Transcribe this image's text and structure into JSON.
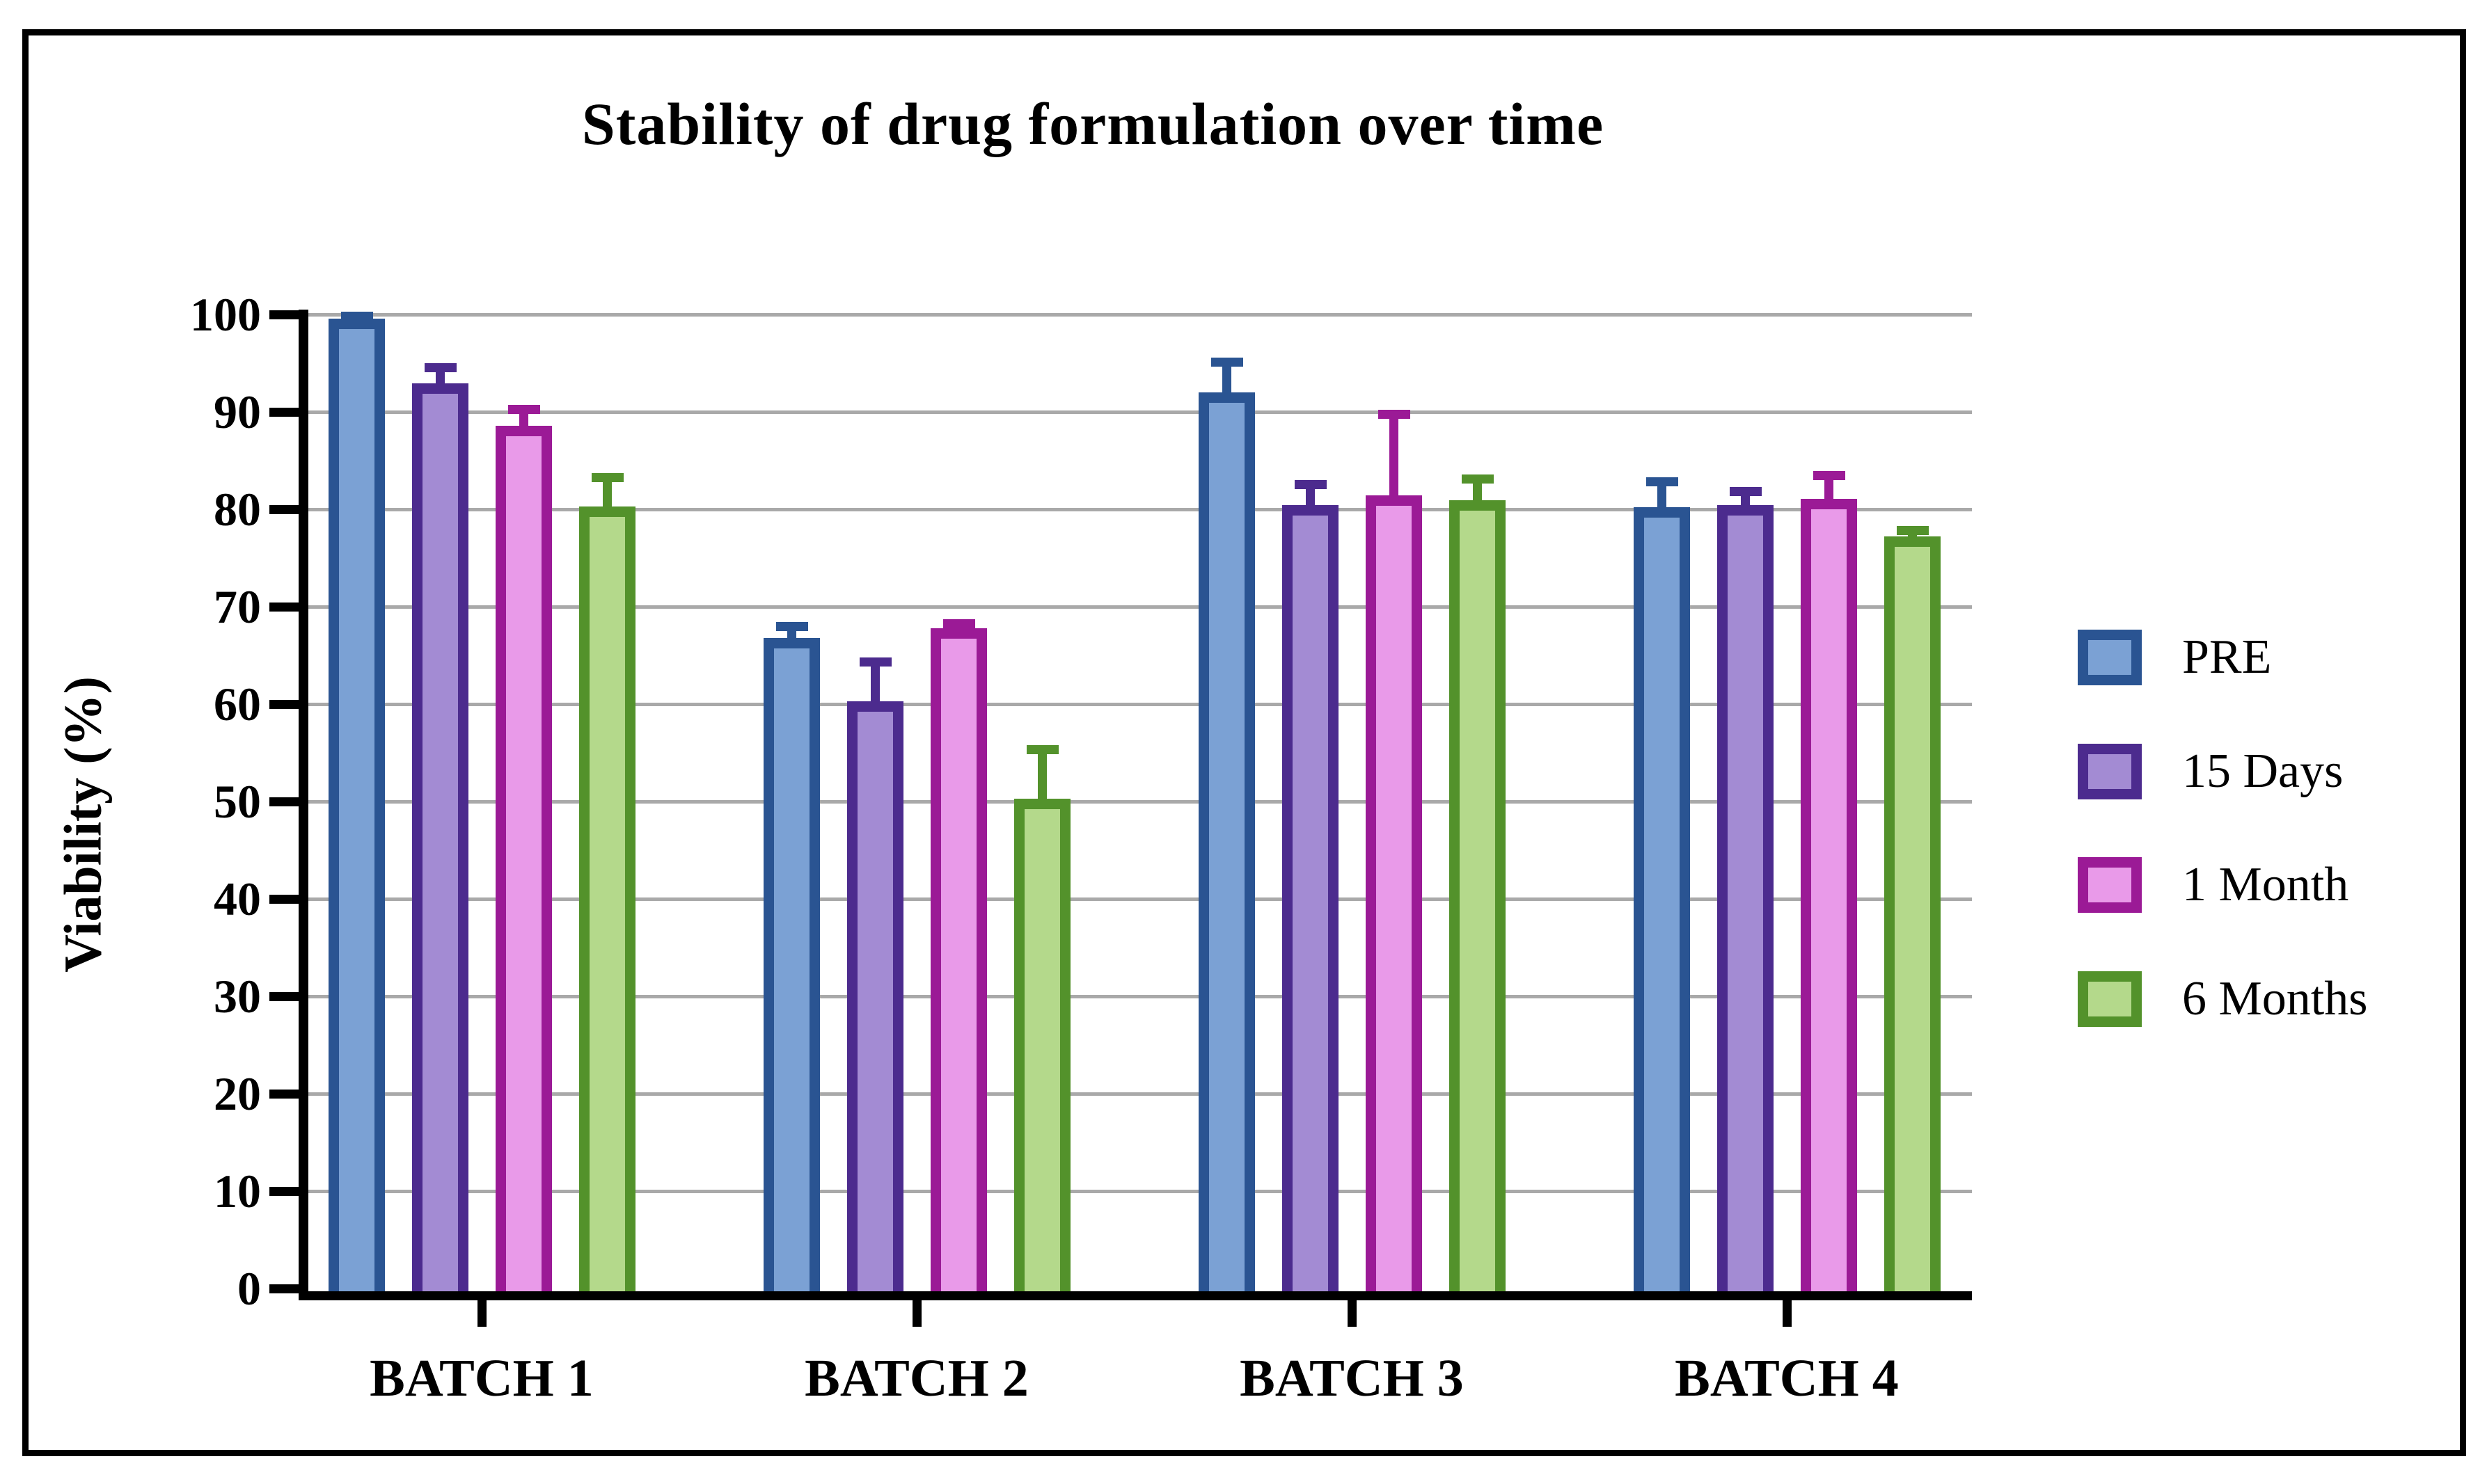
{
  "title": "Stability of drug formulation over time",
  "y_axis": {
    "label": "Viability (%)",
    "min": 0,
    "max": 100,
    "step": 10,
    "tick_labels": [
      "0",
      "10",
      "20",
      "30",
      "40",
      "50",
      "60",
      "70",
      "80",
      "90",
      "100"
    ]
  },
  "x_axis": {
    "categories": [
      "BATCH 1",
      "BATCH 2",
      "BATCH 3",
      "BATCH 4"
    ]
  },
  "legend": {
    "position": "right",
    "items": [
      {
        "label": "PRE"
      },
      {
        "label": "15 Days"
      },
      {
        "label": "1 Month"
      },
      {
        "label": "6 Months"
      }
    ]
  },
  "colors": {
    "grid": "#a9a9a9",
    "axis": "#000000",
    "series": [
      {
        "name": "PRE",
        "border": "#2a5492",
        "fill": "#7ba1d4"
      },
      {
        "name": "15 Days",
        "border": "#4c2b8e",
        "fill": "#a38bd3"
      },
      {
        "name": "1 Month",
        "border": "#9b1a96",
        "fill": "#e99ae9"
      },
      {
        "name": "6 Months",
        "border": "#53922b",
        "fill": "#b4d98b"
      }
    ]
  },
  "chart_data": {
    "type": "bar",
    "title": "Stability of drug formulation over time",
    "xlabel": "",
    "ylabel": "Viability (%)",
    "ylim": [
      0,
      100
    ],
    "grid": true,
    "legend_position": "right",
    "categories": [
      "BATCH 1",
      "BATCH 2",
      "BATCH 3",
      "BATCH 4"
    ],
    "series": [
      {
        "name": "PRE",
        "values": [
          99.6,
          66.8,
          92.0,
          80.2
        ],
        "error_plus": [
          0.7,
          1.6,
          3.6,
          3.1
        ]
      },
      {
        "name": "15 Days",
        "values": [
          92.9,
          60.3,
          80.4,
          80.4
        ],
        "error_plus": [
          2.1,
          4.5,
          2.6,
          1.9
        ]
      },
      {
        "name": "1 Month",
        "values": [
          88.6,
          67.8,
          81.4,
          81.1
        ],
        "error_plus": [
          2.1,
          0.9,
          8.8,
          2.8
        ]
      },
      {
        "name": "6 Months",
        "values": [
          80.3,
          50.3,
          80.9,
          77.2
        ],
        "error_plus": [
          3.4,
          5.5,
          2.7,
          1.1
        ]
      }
    ]
  }
}
